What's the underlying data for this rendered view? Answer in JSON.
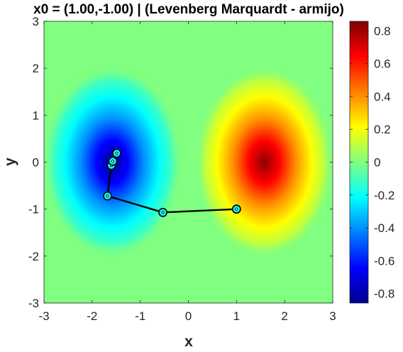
{
  "chart_data": {
    "type": "contour",
    "title": "x0 = (1.00,-1.00) | (Levenberg Marquardt - armijo)",
    "xlabel": "x",
    "ylabel": "y",
    "xlim": [
      -3,
      3
    ],
    "ylim": [
      -3,
      3
    ],
    "xticks": [
      "-3",
      "-2",
      "-1",
      "0",
      "1",
      "2",
      "3"
    ],
    "yticks": [
      "-3",
      "-2",
      "-1",
      "0",
      "1",
      "2",
      "3"
    ],
    "colormap": "jet",
    "clim": [
      -0.858,
      0.858
    ],
    "colorbar_ticks": [
      "-0.8",
      "-0.6",
      "-0.4",
      "-0.2",
      "0",
      "0.2",
      "0.4",
      "0.6",
      "0.8"
    ],
    "surface": {
      "extrema": [
        {
          "x": -1.58,
          "y": 0.0,
          "value": -0.858
        },
        {
          "x": 1.58,
          "y": 0.0,
          "value": 0.858
        }
      ],
      "background_value": 0.0
    },
    "iterates": {
      "x": [
        1.0,
        -0.53,
        -1.68,
        -1.6,
        -1.57,
        -1.49
      ],
      "y": [
        -1.0,
        -1.07,
        -0.72,
        -0.07,
        0.02,
        0.19
      ]
    },
    "colors": {
      "path": "#000000",
      "marker_face": "#00ffff",
      "marker_center": "#ffffff"
    }
  }
}
